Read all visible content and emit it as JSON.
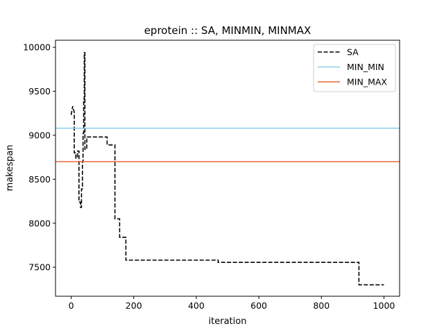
{
  "chart_data": {
    "type": "line",
    "title": "eprotein :: SA, MINMIN, MINMAX",
    "xlabel": "iteration",
    "ylabel": "makespan",
    "xlim": [
      -50,
      1050
    ],
    "ylim": [
      7170,
      10080
    ],
    "xticks": [
      0,
      200,
      400,
      600,
      800,
      1000
    ],
    "yticks": [
      7500,
      8000,
      8500,
      9000,
      9500,
      10000
    ],
    "grid": false,
    "legend_position": "top-right",
    "series": [
      {
        "name": "SA",
        "style": "dashed",
        "color": "#000000",
        "x": [
          0,
          5,
          5,
          10,
          10,
          15,
          15,
          20,
          20,
          25,
          25,
          30,
          30,
          33,
          33,
          36,
          36,
          38,
          38,
          40,
          40,
          42,
          42,
          44,
          44,
          50,
          50,
          115,
          115,
          140,
          140,
          155,
          155,
          175,
          175,
          470,
          470,
          920,
          920,
          1000
        ],
        "y": [
          9230,
          9330,
          9330,
          9260,
          8800,
          8800,
          8740,
          8740,
          8820,
          8820,
          8240,
          8240,
          8180,
          8180,
          8390,
          8390,
          8700,
          8700,
          9020,
          9020,
          9410,
          9410,
          9940,
          9940,
          8840,
          8840,
          8980,
          8980,
          8890,
          8890,
          8050,
          8050,
          7840,
          7840,
          7580,
          7580,
          7555,
          7555,
          7300,
          7300
        ]
      },
      {
        "name": "MIN_MIN",
        "style": "solid",
        "color": "#87ceeb",
        "y_constant": 9080
      },
      {
        "name": "MIN_MAX",
        "style": "solid",
        "color": "#e8663d",
        "y_constant": 8700
      }
    ]
  }
}
